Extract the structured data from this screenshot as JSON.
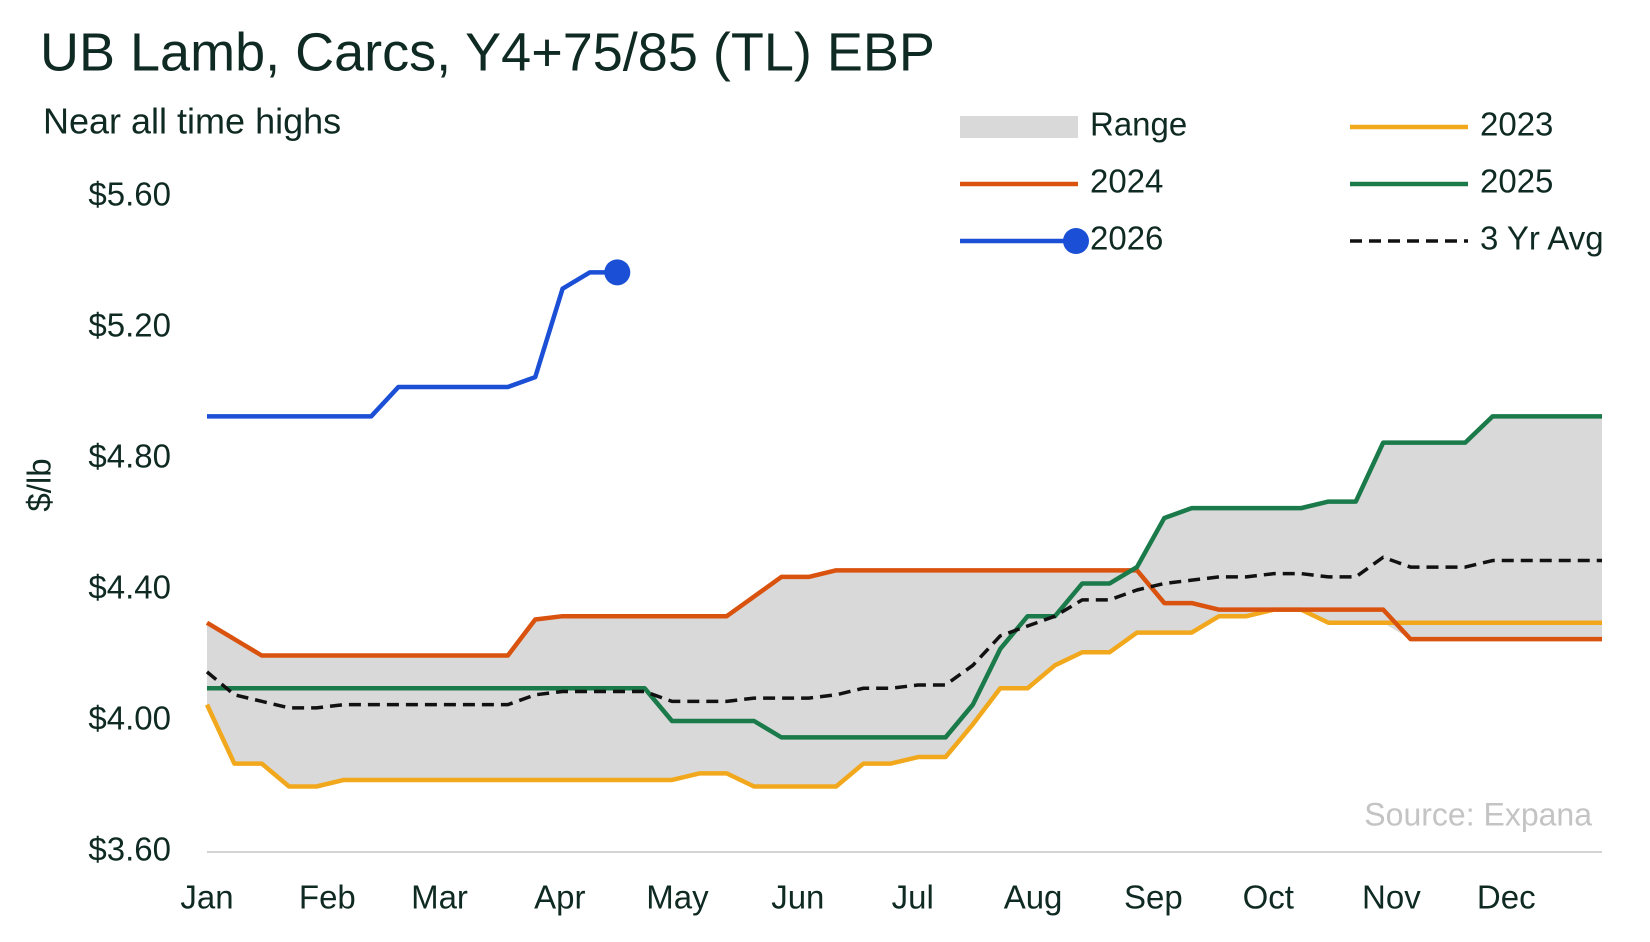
{
  "chart_data": {
    "type": "line",
    "title": "UB Lamb, Carcs, Y4+75/85 (TL) EBP",
    "subtitle": "Near all time highs",
    "y_label": "$/lb",
    "annotation": "Source: Expana",
    "x": [
      0,
      1,
      2,
      3,
      4,
      5,
      6,
      7,
      8,
      9,
      10,
      11,
      12,
      13,
      14,
      15,
      16,
      17,
      18,
      19,
      20,
      21,
      22,
      23,
      24,
      25,
      26,
      27,
      28,
      29,
      30,
      31,
      32,
      33,
      34,
      35,
      36,
      37,
      38,
      39,
      40,
      41,
      42,
      43,
      44,
      45,
      46,
      47,
      48,
      49,
      50,
      51
    ],
    "xlim": [
      0,
      51
    ],
    "xticks": [
      {
        "value": 0,
        "label": "Jan"
      },
      {
        "value": 4.4,
        "label": "Feb"
      },
      {
        "value": 8.5,
        "label": "Mar"
      },
      {
        "value": 12.9,
        "label": "Apr"
      },
      {
        "value": 17.2,
        "label": "May"
      },
      {
        "value": 21.6,
        "label": "Jun"
      },
      {
        "value": 25.8,
        "label": "Jul"
      },
      {
        "value": 30.2,
        "label": "Aug"
      },
      {
        "value": 34.6,
        "label": "Sep"
      },
      {
        "value": 38.8,
        "label": "Oct"
      },
      {
        "value": 43.3,
        "label": "Nov"
      },
      {
        "value": 47.5,
        "label": "Dec"
      }
    ],
    "ylim": [
      3.6,
      5.6
    ],
    "yticks": [
      {
        "value": 3.6,
        "label": "$3.60"
      },
      {
        "value": 4.0,
        "label": "$4.00"
      },
      {
        "value": 4.4,
        "label": "$4.40"
      },
      {
        "value": 4.8,
        "label": "$4.80"
      },
      {
        "value": 5.2,
        "label": "$5.20"
      },
      {
        "value": 5.6,
        "label": "$5.60"
      }
    ],
    "grid": false,
    "range": {
      "name": "Range",
      "color": "#d9d9d9",
      "of": [
        "2023",
        "2024",
        "2025"
      ]
    },
    "series": [
      {
        "name": "2023",
        "color": "#f2a81d",
        "values": [
          4.05,
          3.87,
          3.87,
          3.8,
          3.8,
          3.82,
          3.82,
          3.82,
          3.82,
          3.82,
          3.82,
          3.82,
          3.82,
          3.82,
          3.82,
          3.82,
          3.82,
          3.82,
          3.84,
          3.84,
          3.8,
          3.8,
          3.8,
          3.8,
          3.87,
          3.87,
          3.89,
          3.89,
          3.99,
          4.1,
          4.1,
          4.17,
          4.21,
          4.21,
          4.27,
          4.27,
          4.27,
          4.32,
          4.32,
          4.34,
          4.34,
          4.3,
          4.3,
          4.3,
          4.3,
          4.3,
          4.3,
          4.3,
          4.3,
          4.3,
          4.3,
          4.3
        ]
      },
      {
        "name": "2024",
        "color": "#d9520e",
        "values": [
          4.3,
          4.25,
          4.2,
          4.2,
          4.2,
          4.2,
          4.2,
          4.2,
          4.2,
          4.2,
          4.2,
          4.2,
          4.31,
          4.32,
          4.32,
          4.32,
          4.32,
          4.32,
          4.32,
          4.32,
          4.38,
          4.44,
          4.44,
          4.46,
          4.46,
          4.46,
          4.46,
          4.46,
          4.46,
          4.46,
          4.46,
          4.46,
          4.46,
          4.46,
          4.46,
          4.36,
          4.36,
          4.34,
          4.34,
          4.34,
          4.34,
          4.34,
          4.34,
          4.34,
          4.25,
          4.25,
          4.25,
          4.25,
          4.25,
          4.25,
          4.25,
          4.25
        ]
      },
      {
        "name": "2025",
        "color": "#1a7a4a",
        "values": [
          4.1,
          4.1,
          4.1,
          4.1,
          4.1,
          4.1,
          4.1,
          4.1,
          4.1,
          4.1,
          4.1,
          4.1,
          4.1,
          4.1,
          4.1,
          4.1,
          4.1,
          4.0,
          4.0,
          4.0,
          4.0,
          3.95,
          3.95,
          3.95,
          3.95,
          3.95,
          3.95,
          3.95,
          4.05,
          4.22,
          4.32,
          4.32,
          4.42,
          4.42,
          4.47,
          4.62,
          4.65,
          4.65,
          4.65,
          4.65,
          4.65,
          4.67,
          4.67,
          4.85,
          4.85,
          4.85,
          4.85,
          4.93,
          4.93,
          4.93,
          4.93,
          4.93
        ]
      },
      {
        "name": "2026",
        "color": "#1a4fd6",
        "marker_last": true,
        "values": [
          4.93,
          4.93,
          4.93,
          4.93,
          4.93,
          4.93,
          4.93,
          5.02,
          5.02,
          5.02,
          5.02,
          5.02,
          5.05,
          5.32,
          5.37,
          5.37,
          null,
          null,
          null,
          null,
          null,
          null,
          null,
          null,
          null,
          null,
          null,
          null,
          null,
          null,
          null,
          null,
          null,
          null,
          null,
          null,
          null,
          null,
          null,
          null,
          null,
          null,
          null,
          null,
          null,
          null,
          null,
          null,
          null,
          null,
          null,
          null
        ]
      },
      {
        "name": "3 Yr Avg",
        "color": "#111111",
        "dash": true,
        "values": [
          4.15,
          4.08,
          4.06,
          4.04,
          4.04,
          4.05,
          4.05,
          4.05,
          4.05,
          4.05,
          4.05,
          4.05,
          4.08,
          4.09,
          4.09,
          4.09,
          4.09,
          4.06,
          4.06,
          4.06,
          4.07,
          4.07,
          4.07,
          4.08,
          4.1,
          4.1,
          4.11,
          4.11,
          4.17,
          4.26,
          4.29,
          4.32,
          4.37,
          4.37,
          4.4,
          4.42,
          4.43,
          4.44,
          4.44,
          4.45,
          4.45,
          4.44,
          4.44,
          4.5,
          4.47,
          4.47,
          4.47,
          4.49,
          4.49,
          4.49,
          4.49,
          4.49
        ]
      }
    ]
  }
}
